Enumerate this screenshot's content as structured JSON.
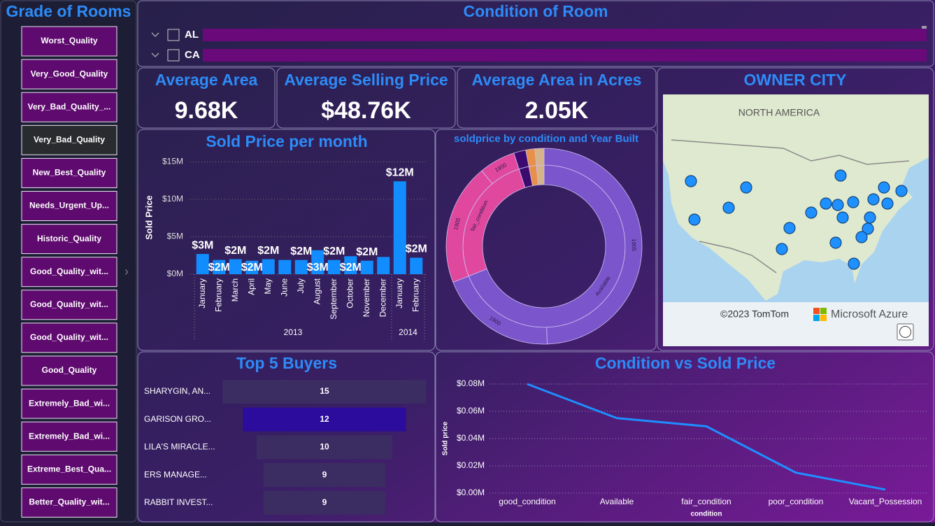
{
  "grade_slicer": {
    "title": "Grade of Rooms",
    "items": [
      "Worst_Quality",
      "Very_Good_Quality",
      "Very_Bad_Quality_...",
      "Very_Bad_Quality",
      "New_Best_Quality",
      "Needs_Urgent_Up...",
      "Historic_Quality",
      "Good_Quality_wit...",
      "Good_Quality_wit...",
      "Good_Quality_wit...",
      "Good_Quality",
      "Extremely_Bad_wi...",
      "Extremely_Bad_wi...",
      "Extreme_Best_Qua...",
      "Better_Quality_wit..."
    ]
  },
  "condition_slicer": {
    "title": "Condition of Room",
    "items": [
      "AL",
      "CA"
    ]
  },
  "cards": [
    {
      "label": "Average Area",
      "value": "9.68K"
    },
    {
      "label": "Average Selling Price",
      "value": "$48.76K"
    },
    {
      "label": "Average Area in Acres",
      "value": "2.05K"
    }
  ],
  "map": {
    "title": "OWNER CITY",
    "region_label": "NORTH AMERICA",
    "attribution": "©2023 TomTom",
    "provider": "Microsoft Azure"
  },
  "chart_data": [
    {
      "type": "bar",
      "title": "Sold Price per month",
      "y_label": "Sold Price",
      "color": "#118dff",
      "grid": true,
      "ylim": [
        0,
        15500000
      ],
      "yticks": [
        {
          "value": 0,
          "label": "$0M"
        },
        {
          "value": 5000000,
          "label": "$5M"
        },
        {
          "value": 10000000,
          "label": "$10M"
        },
        {
          "value": 15000000,
          "label": "$15M"
        }
      ],
      "groups": [
        {
          "name": "2013",
          "categories": [
            "January",
            "February",
            "March",
            "April",
            "May",
            "June",
            "July",
            "August",
            "September",
            "October",
            "November",
            "December"
          ],
          "values": [
            2700000,
            1900000,
            2000000,
            1800000,
            2000000,
            1900000,
            1900000,
            3200000,
            1900000,
            2400000,
            1800000,
            2300000
          ],
          "value_labels": [
            "$3M",
            "$2M",
            "$2M",
            "$2M",
            "$2M",
            null,
            "$2M",
            "$3M",
            "$2M",
            "$2M",
            "$2M",
            null
          ]
        },
        {
          "name": "2014",
          "categories": [
            "January",
            "February"
          ],
          "values": [
            12400000,
            2200000
          ],
          "value_labels": [
            "$12M",
            "$2M"
          ]
        }
      ]
    },
    {
      "type": "sunburst",
      "title": "soldprice by condition and Year Built",
      "rings": [
        {
          "labels": [
            "Available",
            "fair_condition",
            null,
            null,
            null
          ],
          "values": [
            69,
            26,
            2,
            1.5,
            1.5
          ],
          "colors": [
            "#7a55cc",
            "#e0489e",
            "#3b0a6e",
            "#e8904a",
            "#d6b48a"
          ]
        },
        {
          "labels": [
            "1905",
            "1900",
            "1905",
            "1900",
            null,
            null,
            null
          ],
          "values": [
            49.5,
            19.5,
            20,
            6,
            2,
            1.5,
            1.5
          ],
          "colors": [
            "#7a55cc",
            "#7a55cc",
            "#e0489e",
            "#e0489e",
            "#3b0a6e",
            "#e8904a",
            "#d6b48a"
          ]
        }
      ]
    },
    {
      "type": "funnel",
      "title": "Top 5 Buyers",
      "categories": [
        "SHARYGIN, AN...",
        "GARISON GRO...",
        "LILA'S MIRACLE...",
        "ERS MANAGE...",
        "RABBIT INVEST..."
      ],
      "values": [
        15,
        12,
        10,
        9,
        9
      ],
      "colors": [
        "#3b2d62",
        "#2b0c9c",
        "#3b2d62",
        "#3b2d62",
        "#3b2d62"
      ]
    },
    {
      "type": "line",
      "title": "Condition vs Sold Price",
      "x_label": "condition",
      "y_label": "Sold price",
      "color": "#1e8fff",
      "grid": true,
      "categories": [
        "good_condition",
        "Available",
        "fair_condition",
        "poor_condition",
        "Vacant_Possession"
      ],
      "values": [
        80000,
        55000,
        49000,
        15000,
        2600
      ],
      "ylim": [
        0,
        80000
      ],
      "yticks": [
        {
          "value": 0,
          "label": "$0.00M"
        },
        {
          "value": 20000,
          "label": "$0.02M"
        },
        {
          "value": 40000,
          "label": "$0.04M"
        },
        {
          "value": 60000,
          "label": "$0.06M"
        },
        {
          "value": 80000,
          "label": "$0.08M"
        }
      ]
    }
  ]
}
